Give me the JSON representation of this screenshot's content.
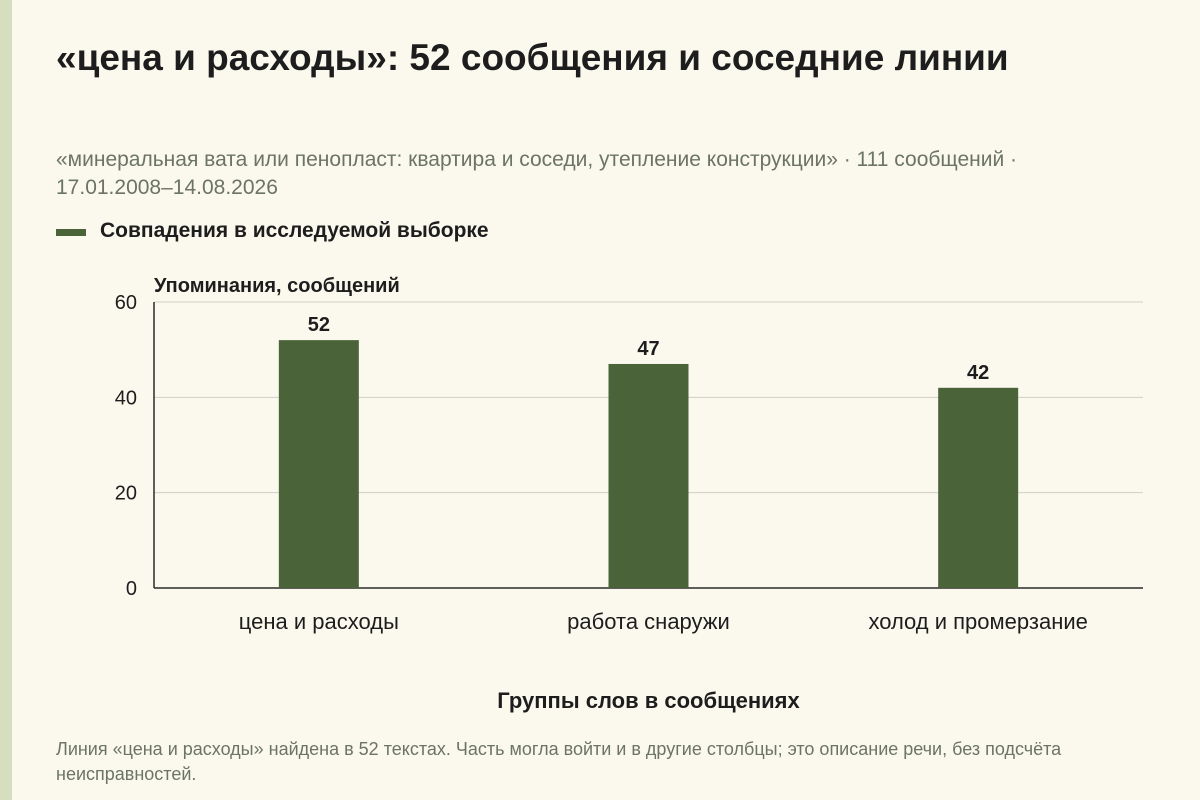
{
  "title": "«цена и расходы»: 52 сообщения и соседние линии",
  "subtitle": "«минеральная вата или пенопласт: квартира и соседи, утепление конструкции» · 111 сообщений · 17.01.2008–14.08.2026",
  "legend": {
    "label": "Совпадения в исследуемой выборке",
    "color": "#4a6339"
  },
  "footnote": "Линия «цена и расходы» найдена в 52 текстах. Часть могла войти и в другие столбцы; это описание речи, без подсчёта неисправностей.",
  "chart_data": {
    "type": "bar",
    "categories": [
      "цена и расходы",
      "работа снаружи",
      "холод и промерзание"
    ],
    "values": [
      52,
      47,
      42
    ],
    "data_labels": [
      "52",
      "47",
      "42"
    ],
    "ylabel": "Упоминания, сообщений",
    "xlabel": "Группы слов в сообщениях",
    "ylim": [
      0,
      60
    ],
    "yticks": [
      0,
      20,
      40,
      60
    ],
    "grid": true,
    "legend_position": "top-left",
    "bar_color": "#4a6339"
  }
}
